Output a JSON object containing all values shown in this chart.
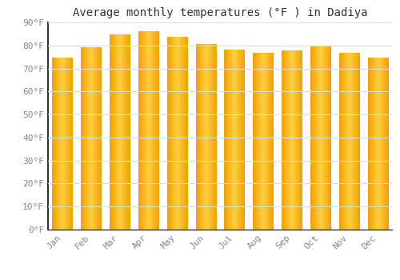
{
  "title": "Average monthly temperatures (°F ) in Dadiya",
  "months": [
    "Jan",
    "Feb",
    "Mar",
    "Apr",
    "May",
    "Jun",
    "Jul",
    "Aug",
    "Sep",
    "Oct",
    "Nov",
    "Dec"
  ],
  "values": [
    74.5,
    79.0,
    84.5,
    86.0,
    83.5,
    80.5,
    78.0,
    76.5,
    77.5,
    79.5,
    76.5,
    74.5
  ],
  "bar_color_edge": "#F0A000",
  "bar_color_center": "#FFD040",
  "background_color": "#FFFFFF",
  "grid_color": "#DDDDDD",
  "ylim": [
    0,
    90
  ],
  "yticks": [
    0,
    10,
    20,
    30,
    40,
    50,
    60,
    70,
    80,
    90
  ],
  "ytick_labels": [
    "0°F",
    "10°F",
    "20°F",
    "30°F",
    "40°F",
    "50°F",
    "60°F",
    "70°F",
    "80°F",
    "90°F"
  ],
  "title_fontsize": 10,
  "tick_fontsize": 8,
  "font_family": "monospace",
  "left_spine_color": "#333333",
  "bottom_spine_color": "#333333"
}
